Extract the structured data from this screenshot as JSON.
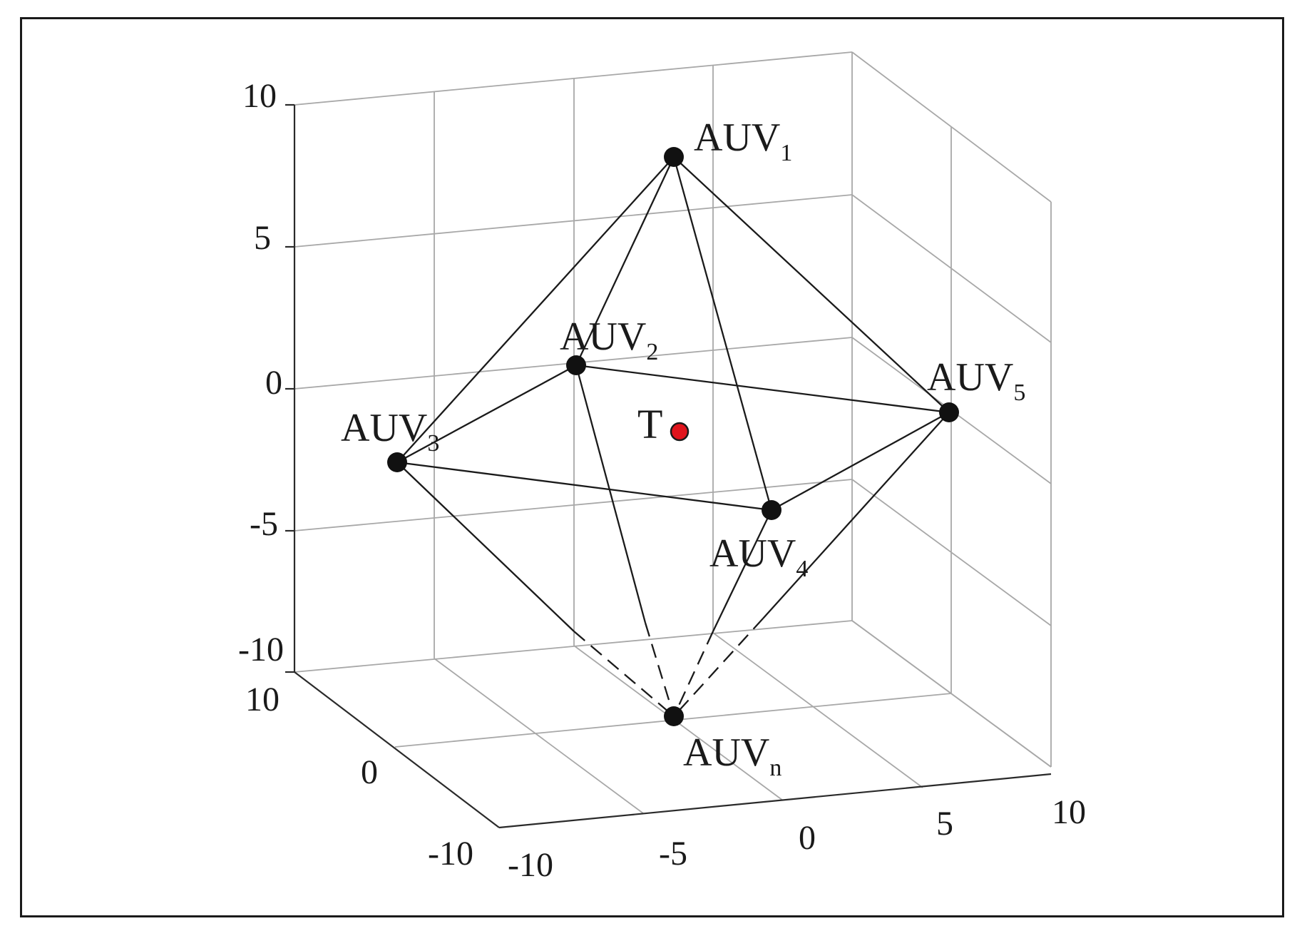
{
  "diagram": {
    "type": "3d-scatter-network",
    "grid": true,
    "z_axis": {
      "ticks": [
        "10",
        "5",
        "0",
        "-5",
        "-10"
      ]
    },
    "y_axis": {
      "ticks": [
        "10",
        "0",
        "-10"
      ]
    },
    "x_axis": {
      "ticks": [
        "-10",
        "-5",
        "0",
        "5",
        "10"
      ]
    },
    "nodes": [
      {
        "id": "auv1",
        "base": "AUV",
        "sub": "1"
      },
      {
        "id": "auv2",
        "base": "AUV",
        "sub": "2"
      },
      {
        "id": "auv3",
        "base": "AUV",
        "sub": "3"
      },
      {
        "id": "auv4",
        "base": "AUV",
        "sub": "4"
      },
      {
        "id": "auv5",
        "base": "AUV",
        "sub": "5"
      },
      {
        "id": "auvn",
        "base": "AUV",
        "sub": "n"
      }
    ],
    "target": {
      "label": "T",
      "color": "#e0141c"
    },
    "edges": [
      {
        "from": "auv1",
        "to": "auv2",
        "style": "solid"
      },
      {
        "from": "auv1",
        "to": "auv3",
        "style": "solid"
      },
      {
        "from": "auv1",
        "to": "auv4",
        "style": "solid"
      },
      {
        "from": "auv1",
        "to": "auv5",
        "style": "solid"
      },
      {
        "from": "auv2",
        "to": "auv3",
        "style": "solid"
      },
      {
        "from": "auv2",
        "to": "auv5",
        "style": "solid"
      },
      {
        "from": "auv3",
        "to": "auv4",
        "style": "solid"
      },
      {
        "from": "auv4",
        "to": "auv5",
        "style": "solid"
      },
      {
        "from": "auv2",
        "to": "auvn",
        "style": "solid-then-dashed"
      },
      {
        "from": "auv3",
        "to": "auvn",
        "style": "solid-then-dashed"
      },
      {
        "from": "auv4",
        "to": "auvn",
        "style": "solid-then-dashed"
      },
      {
        "from": "auv5",
        "to": "auvn",
        "style": "solid-then-dashed"
      }
    ]
  }
}
